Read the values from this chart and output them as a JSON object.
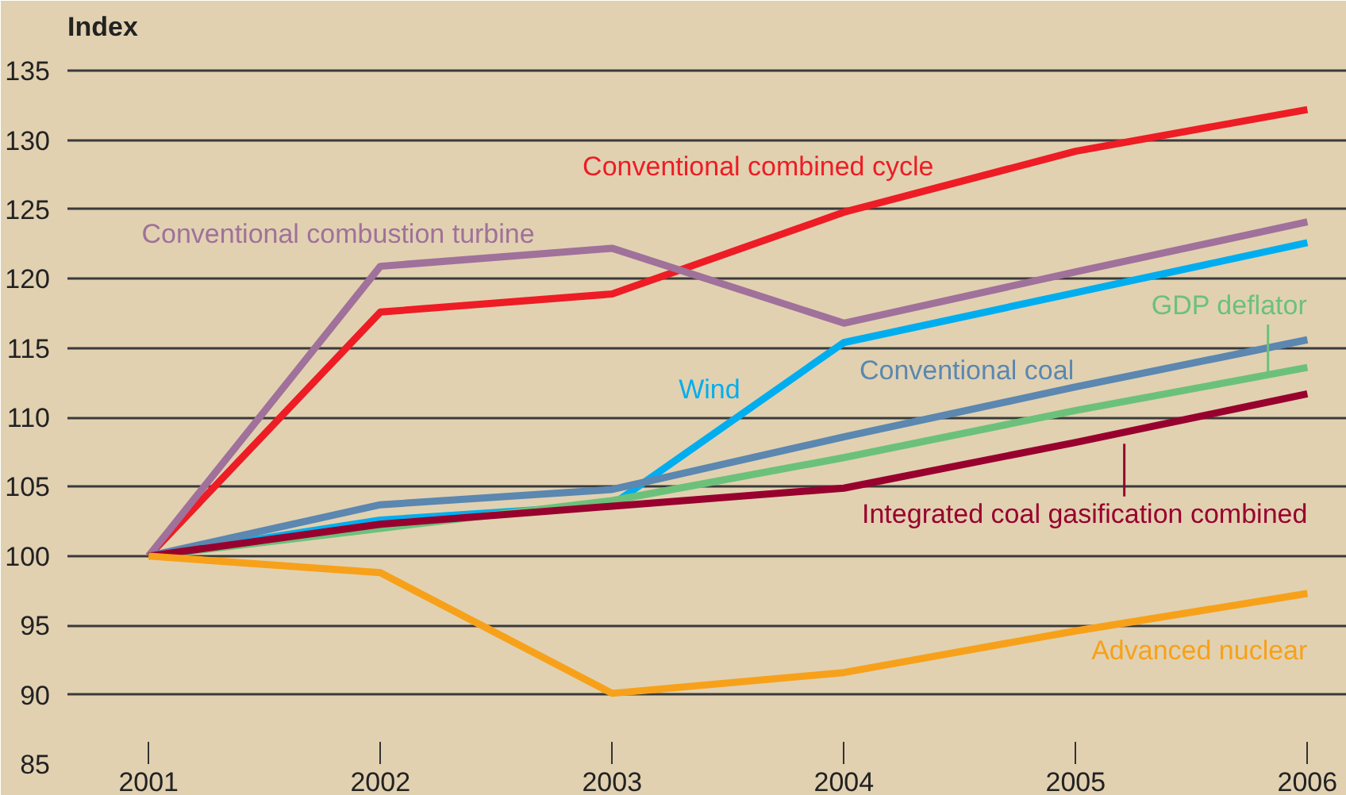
{
  "chart_data": {
    "type": "line",
    "title": "Index",
    "x": [
      2001,
      2002,
      2003,
      2004,
      2005,
      2006
    ],
    "xlim": [
      2000.65,
      2006.17
    ],
    "xticks": [
      2001,
      2002,
      2003,
      2004,
      2005,
      2006
    ],
    "ylim": [
      85,
      136.5
    ],
    "yticks": [
      85,
      90,
      95,
      100,
      105,
      110,
      115,
      120,
      125,
      130,
      135
    ],
    "grid": "y",
    "marker": "none",
    "line_style": "solid",
    "series": [
      {
        "name": "Conventional combined cycle",
        "color": "#ee1c25",
        "values": [
          100,
          117.6,
          118.9,
          124.8,
          129.2,
          132.2
        ]
      },
      {
        "name": "Conventional combustion turbine",
        "color": "#a0719a",
        "values": [
          100,
          120.9,
          122.2,
          116.8,
          120.5,
          124.1
        ]
      },
      {
        "name": "Wind",
        "color": "#00aeef",
        "values": [
          100,
          102.6,
          103.7,
          115.4,
          119,
          122.6
        ]
      },
      {
        "name": "Conventional coal",
        "color": "#5b87b0",
        "values": [
          100,
          103.7,
          104.8,
          108.6,
          112.2,
          115.6
        ]
      },
      {
        "name": "GDP deflator",
        "color": "#6cc17a",
        "values": [
          100,
          102,
          104,
          107.1,
          110.5,
          113.6
        ]
      },
      {
        "name": "Integrated coal gasification combined",
        "color": "#98002e",
        "values": [
          100,
          102.3,
          103.6,
          104.9,
          108.2,
          111.7
        ]
      },
      {
        "name": "Advanced nuclear",
        "color": "#f7a11a",
        "values": [
          100,
          98.8,
          90.1,
          91.6,
          94.6,
          97.3
        ]
      }
    ]
  }
}
